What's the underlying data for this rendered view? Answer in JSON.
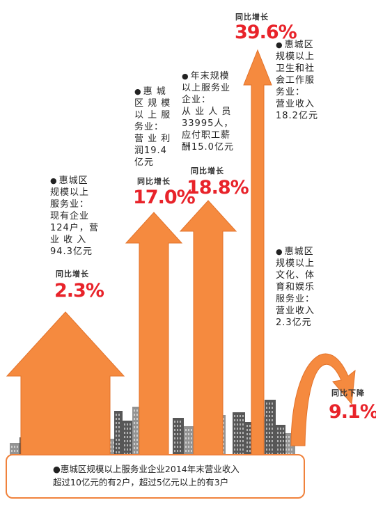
{
  "colors": {
    "arrow": "#f58a3f",
    "arrow_dark": "#e2722a",
    "pct": "#e8232a",
    "city": "#3a3a3a",
    "frame": "#f0823c"
  },
  "chart_data": {
    "type": "bar",
    "categories": [
      "规模以上服务业",
      "营业利润",
      "应付职工薪酬",
      "卫生和社会工作服务业营业收入",
      "文化、体育和娱乐服务业营业收入"
    ],
    "series": [
      {
        "values": [
          2.3,
          17.0,
          18.8,
          39.6,
          -9.1
        ]
      }
    ]
  },
  "annotations": [
    {
      "id": "a1",
      "lines": [
        "惠城区",
        "规模以上",
        "服务业：",
        "现有企业",
        "124户，营",
        "业 收 入",
        "94.3亿元"
      ],
      "tag": "同比增长",
      "pct": "2.3%"
    },
    {
      "id": "a2",
      "lines": [
        "惠 城",
        "区 规 模",
        "以 上 服",
        "务业：",
        "营 业 利",
        "润19.4",
        "亿元"
      ],
      "tag": "同比增长",
      "pct": "17.0%"
    },
    {
      "id": "a3",
      "lines": [
        "年末规模",
        "以上服务业",
        "企业：",
        "从 业 人 员",
        "33995人，",
        "应付职工薪",
        "酬15.0亿元"
      ],
      "tag": "同比增长",
      "pct": "18.8%"
    },
    {
      "id": "a4",
      "lines": [
        "惠城区",
        "规模以上",
        "卫生和社",
        "会工作服",
        "务业：",
        "营业收入",
        "18.2亿元"
      ],
      "tag": "同比增长",
      "pct": "39.6%"
    },
    {
      "id": "a5",
      "lines": [
        "惠城区",
        "规模以上",
        "文化、体",
        "育和娱乐",
        "服务业：",
        "营业收入",
        "2.3亿元"
      ],
      "tag": "同比下降",
      "pct": "9.1%"
    }
  ],
  "footer": {
    "line1": "惠城区规模以上服务业企业2014年末营业收入",
    "line2": "超过10亿元的有2户，超过5亿元以上的有3户"
  }
}
